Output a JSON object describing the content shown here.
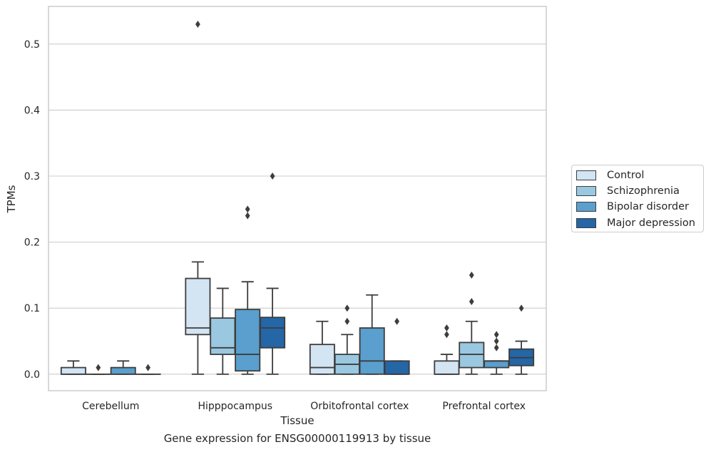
{
  "chart_data": {
    "type": "box",
    "xlabel": "Tissue",
    "ylabel": "TPMs",
    "caption": "Gene expression for ENSG00000119913 by tissue",
    "categories": [
      "Cerebellum",
      "Hipppocampus",
      "Orbitofrontal cortex",
      "Prefrontal cortex"
    ],
    "ylim": [
      -0.025,
      0.557
    ],
    "yticks": [
      0.0,
      0.1,
      0.2,
      0.3,
      0.4,
      0.5
    ],
    "ytick_labels": [
      "0.0",
      "0.1",
      "0.2",
      "0.3",
      "0.4",
      "0.5"
    ],
    "grid": "horizontal",
    "legend_position": "center-right outside",
    "series": [
      {
        "name": "Control",
        "color": "#d3e4f3",
        "boxes": [
          {
            "whislo": 0.0,
            "q1": 0.0,
            "med": 0.0,
            "q3": 0.01,
            "whishi": 0.02,
            "fliers": []
          },
          {
            "whislo": 0.0,
            "q1": 0.06,
            "med": 0.07,
            "q3": 0.145,
            "whishi": 0.17,
            "fliers": [
              0.53
            ]
          },
          {
            "whislo": 0.0,
            "q1": 0.0,
            "med": 0.01,
            "q3": 0.045,
            "whishi": 0.08,
            "fliers": []
          },
          {
            "whislo": 0.0,
            "q1": 0.0,
            "med": 0.0,
            "q3": 0.02,
            "whishi": 0.03,
            "fliers": [
              0.06,
              0.07
            ]
          }
        ]
      },
      {
        "name": "Schizophrenia",
        "color": "#9ac8e0",
        "boxes": [
          {
            "whislo": 0.0,
            "q1": 0.0,
            "med": 0.0,
            "q3": 0.0,
            "whishi": 0.0,
            "fliers": [
              0.01
            ]
          },
          {
            "whislo": 0.0,
            "q1": 0.03,
            "med": 0.04,
            "q3": 0.085,
            "whishi": 0.13,
            "fliers": []
          },
          {
            "whislo": 0.0,
            "q1": 0.0,
            "med": 0.015,
            "q3": 0.03,
            "whishi": 0.06,
            "fliers": [
              0.08,
              0.1
            ]
          },
          {
            "whislo": 0.0,
            "q1": 0.01,
            "med": 0.03,
            "q3": 0.048,
            "whishi": 0.08,
            "fliers": [
              0.11,
              0.15
            ]
          }
        ]
      },
      {
        "name": "Bipolar disorder",
        "color": "#5a9fcd",
        "boxes": [
          {
            "whislo": 0.0,
            "q1": 0.0,
            "med": 0.0,
            "q3": 0.01,
            "whishi": 0.02,
            "fliers": []
          },
          {
            "whislo": 0.0,
            "q1": 0.005,
            "med": 0.03,
            "q3": 0.098,
            "whishi": 0.14,
            "fliers": [
              0.24,
              0.25
            ]
          },
          {
            "whislo": 0.0,
            "q1": 0.0,
            "med": 0.02,
            "q3": 0.07,
            "whishi": 0.12,
            "fliers": []
          },
          {
            "whislo": 0.0,
            "q1": 0.01,
            "med": 0.02,
            "q3": 0.02,
            "whishi": 0.02,
            "fliers": [
              0.04,
              0.05,
              0.06
            ]
          }
        ]
      },
      {
        "name": "Major depression",
        "color": "#2466a6",
        "boxes": [
          {
            "whislo": 0.0,
            "q1": 0.0,
            "med": 0.0,
            "q3": 0.0,
            "whishi": 0.0,
            "fliers": [
              0.01
            ]
          },
          {
            "whislo": 0.0,
            "q1": 0.04,
            "med": 0.07,
            "q3": 0.086,
            "whishi": 0.13,
            "fliers": [
              0.3
            ]
          },
          {
            "whislo": 0.0,
            "q1": 0.0,
            "med": 0.0,
            "q3": 0.02,
            "whishi": 0.02,
            "fliers": [
              0.08
            ]
          },
          {
            "whislo": 0.0,
            "q1": 0.013,
            "med": 0.025,
            "q3": 0.038,
            "whishi": 0.05,
            "fliers": [
              0.1
            ]
          }
        ]
      }
    ]
  }
}
